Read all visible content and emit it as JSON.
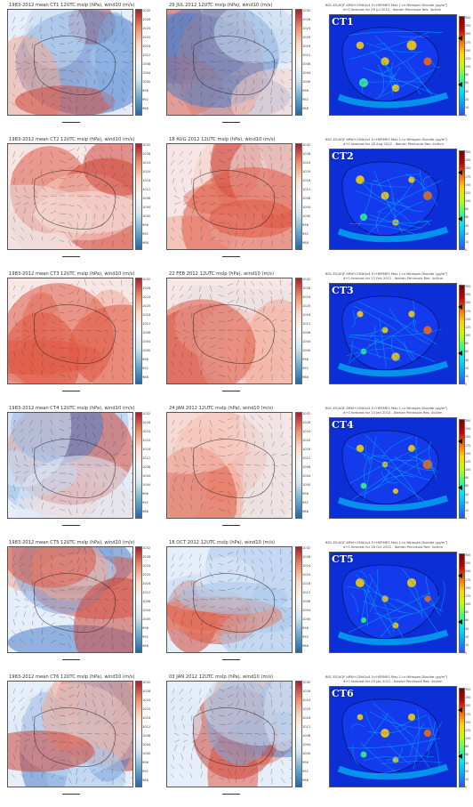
{
  "colorbar_ticks": [
    "1032",
    "1028",
    "1024",
    "1020",
    "1016",
    "1012",
    "1008",
    "1004",
    "1000",
    "996",
    "992",
    "988"
  ],
  "rows": [
    {
      "left_title": "1983-2012 mean CT1 12UTC mslp (hPa), wind10 (m/s)",
      "mid_title": "29 JUL 2012 12UTC mslp (hPa), wind10 (m/s)",
      "ct": "CT1",
      "no2_title": "BSC-ES/AQF ARW+CMAQv4.5+HERMES Max 1-hr Nitrogen Dioxide (µg/m³)",
      "no2_sub": "d+0 forecast for 29 Jul 2012 - Iberian Peninsula Res: 4x4km"
    },
    {
      "left_title": "1983-2012 mean CT2 12UTC mslp (hPa), wind10 (m/s)",
      "mid_title": "18 AUG 2012 12UTC mslp (hPa), wind10 (m/s)",
      "ct": "CT2",
      "no2_title": "BSC-ES/AQF ARW+CMAQv4.5+HERMES Max 1-hr Nitrogen Dioxide (µg/m³)",
      "no2_sub": "d+0 forecast for 18 Aug 2012 - Iberian Peninsula Res: 4x4km"
    },
    {
      "left_title": "1983-2012 mean CT3 12UTC mslp (hPa), wind10 (m/s)",
      "mid_title": "22 FEB 2012 12UTC mslp (hPa), wind10 (m/s)",
      "ct": "CT3",
      "no2_title": "BSC-ES/AQF ARW+CMAQv4.5+HERMES Max 1-hr Nitrogen Dioxide (µg/m³)",
      "no2_sub": "d+0 forecast for 22 Feb 2012 - Iberian Peninsula Res: 4x4km"
    },
    {
      "left_title": "1983-2012 mean CT4 12UTC mslp (hPa), wind10 (m/s)",
      "mid_title": "24 JAN 2012 12UTC mslp (hPa), wind10 (m/s)",
      "ct": "CT4",
      "no2_title": "BSC-ES/AQF ARW+CMAQv4.5+HERMES Max 1-hr Nitrogen Dioxide (µg/m³)",
      "no2_sub": "d+0 forecast for 24 Jan 2012 - Iberian Peninsula Res: 4x4km"
    },
    {
      "left_title": "1983-2012 mean CT5 12UTC mslp (hPa), wind10 (m/s)",
      "mid_title": "18 OCT 2012 12UTC mslp (hPa), wind10 (m/s)",
      "ct": "CT5",
      "no2_title": "BSC-ES/AQF ARW+CMAQv4.5+HERMES Max 1-hr Nitrogen Dioxide (µg/m³)",
      "no2_sub": "d+0 forecast for 18 Oct 2012 - Iberian Peninsula Res: 4x4km"
    },
    {
      "left_title": "1983-2012 mean CT6 12UTC mslp (hPa), wind10 (m/s)",
      "mid_title": "03 JAN 2012 12UTC mslp (hPa), wind10 (m/s)",
      "ct": "CT6",
      "no2_title": "BSC-ES/AQF ARW+CMAQv4.5+HERMES Max 1-hr Nitrogen Dioxide (µg/m³)",
      "no2_sub": "d+0 forecast for 03 Jan 2012 - Iberian Peninsula Res: 4x4km"
    }
  ],
  "no2_ticks": [
    "300",
    "250",
    "200",
    "175",
    "150",
    "125",
    "100",
    "80",
    "60",
    "40",
    "20",
    "10",
    "5"
  ]
}
